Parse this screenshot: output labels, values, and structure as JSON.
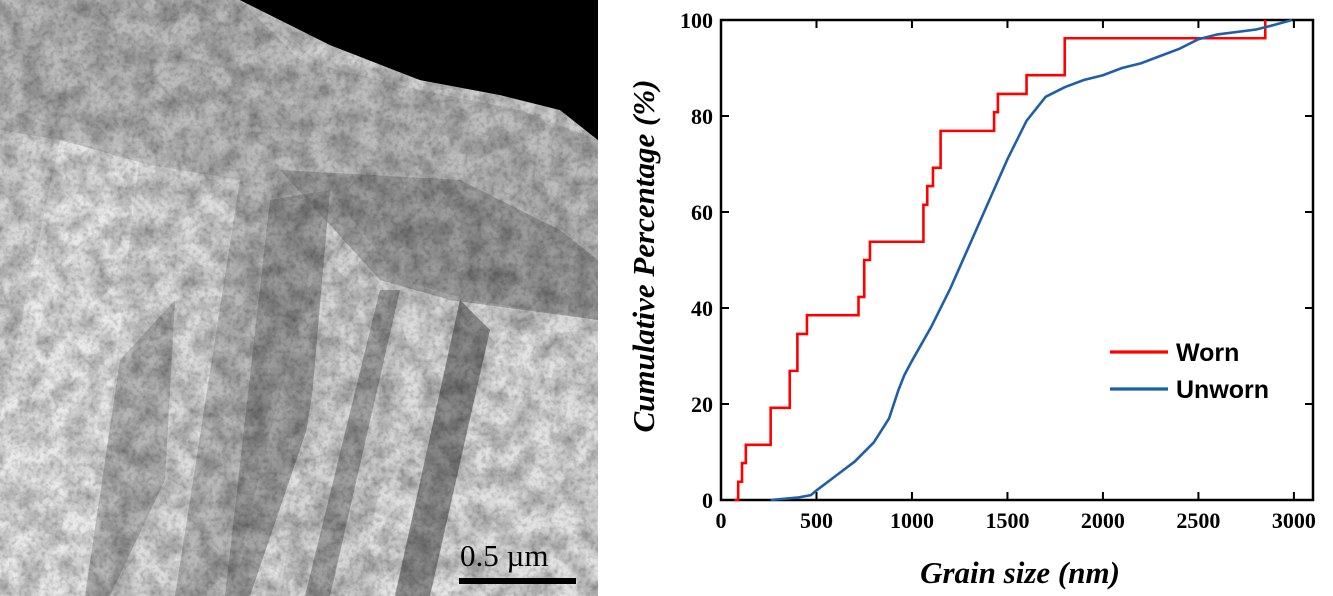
{
  "micrograph": {
    "scale_bar_label": "0.5 µm",
    "scale_bar_value_um": 0.5
  },
  "chart_data": {
    "type": "line",
    "title": "",
    "xlabel": "Grain size (nm)",
    "ylabel": "Cumulative Percentage (%)",
    "xlim": [
      0,
      3100
    ],
    "ylim": [
      0,
      100
    ],
    "xticks": [
      0,
      500,
      1000,
      1500,
      2000,
      2500,
      3000
    ],
    "yticks": [
      0,
      20,
      40,
      60,
      80,
      100
    ],
    "grid": false,
    "legend_position": "lower-right",
    "series": [
      {
        "name": "Worn",
        "color": "#ff0000",
        "step": true,
        "x": [
          70,
          90,
          110,
          130,
          260,
          360,
          400,
          450,
          720,
          750,
          780,
          1060,
          1080,
          1110,
          1150,
          1430,
          1450,
          1600,
          1800,
          2850
        ],
        "y": [
          0,
          3.8,
          7.7,
          11.5,
          19.2,
          26.9,
          34.6,
          38.5,
          42.3,
          50,
          53.8,
          61.5,
          65.4,
          69.2,
          76.9,
          80.8,
          84.6,
          88.5,
          96.2,
          100
        ]
      },
      {
        "name": "Unworn",
        "color": "#1f5fa8",
        "step": false,
        "x": [
          260,
          400,
          470,
          500,
          600,
          700,
          800,
          880,
          930,
          960,
          1000,
          1100,
          1200,
          1300,
          1400,
          1500,
          1600,
          1700,
          1800,
          1900,
          2000,
          2100,
          2200,
          2300,
          2400,
          2500,
          2600,
          2700,
          2800,
          2900,
          2990
        ],
        "y": [
          0,
          0.5,
          1,
          2,
          5,
          8,
          12,
          17,
          23,
          26,
          29,
          36,
          44,
          53,
          62,
          71,
          79,
          84,
          86,
          87.5,
          88.5,
          90,
          91,
          92.5,
          94,
          96,
          97,
          97.5,
          98,
          99,
          100
        ]
      }
    ]
  }
}
